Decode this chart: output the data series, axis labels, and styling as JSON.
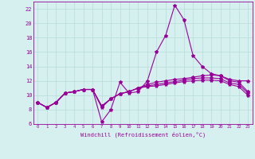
{
  "xlabel": "Windchill (Refroidissement éolien,°C)",
  "bg_color": "#d5f0ee",
  "grid_color": "#b8ddd8",
  "line_color": "#990099",
  "x": [
    0,
    1,
    2,
    3,
    4,
    5,
    6,
    7,
    8,
    9,
    10,
    11,
    12,
    13,
    14,
    15,
    16,
    17,
    18,
    19,
    20,
    21,
    22,
    23
  ],
  "line1": [
    9.0,
    8.3,
    9.0,
    10.3,
    10.5,
    10.8,
    10.8,
    6.3,
    8.0,
    11.8,
    10.3,
    10.5,
    12.0,
    16.0,
    18.3,
    22.5,
    20.5,
    15.5,
    14.0,
    13.0,
    12.7,
    12.2,
    12.0,
    12.0
  ],
  "line2": [
    9.0,
    8.3,
    9.0,
    10.3,
    10.5,
    10.8,
    10.8,
    8.3,
    9.5,
    10.2,
    10.5,
    11.0,
    11.5,
    11.8,
    12.0,
    12.2,
    12.3,
    12.5,
    12.7,
    12.8,
    12.7,
    12.0,
    11.8,
    10.5
  ],
  "line3": [
    9.0,
    8.3,
    9.0,
    10.3,
    10.5,
    10.8,
    10.8,
    8.5,
    9.5,
    10.2,
    10.5,
    11.0,
    11.3,
    11.5,
    11.7,
    11.9,
    12.1,
    12.3,
    12.4,
    12.4,
    12.3,
    11.7,
    11.5,
    10.3
  ],
  "line4": [
    9.0,
    8.3,
    9.0,
    10.3,
    10.5,
    10.8,
    10.8,
    8.5,
    9.5,
    10.2,
    10.5,
    11.0,
    11.2,
    11.3,
    11.5,
    11.7,
    11.9,
    12.0,
    12.1,
    12.1,
    12.0,
    11.5,
    11.2,
    10.0
  ],
  "ylim": [
    6,
    23
  ],
  "xlim_min": -0.5,
  "xlim_max": 23.5,
  "yticks": [
    6,
    8,
    10,
    12,
    14,
    16,
    18,
    20,
    22
  ],
  "xticks": [
    0,
    1,
    2,
    3,
    4,
    5,
    6,
    7,
    8,
    9,
    10,
    11,
    12,
    13,
    14,
    15,
    16,
    17,
    18,
    19,
    20,
    21,
    22,
    23
  ]
}
